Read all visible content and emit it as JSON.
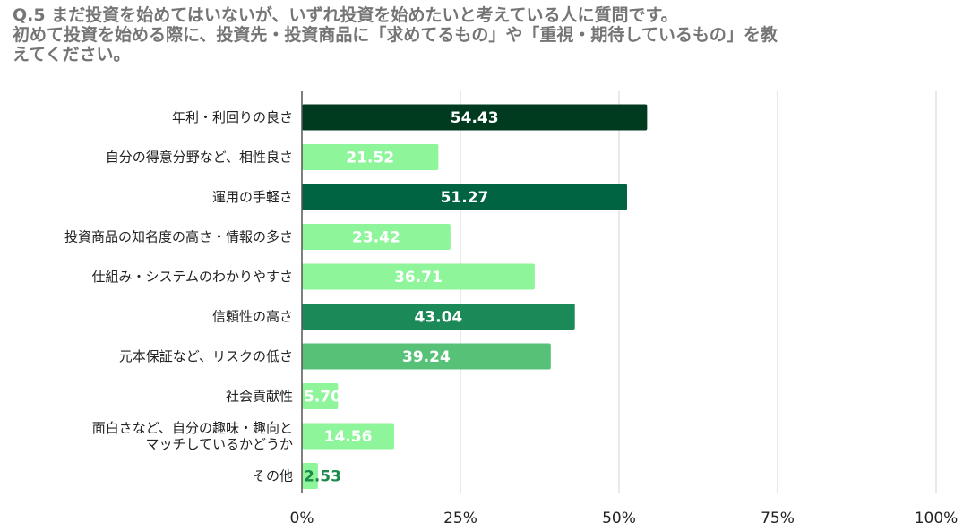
{
  "chart_data": {
    "type": "bar",
    "orientation": "horizontal",
    "title": [
      "Q.5 まだ投資を始めてはいないが、いずれ投資を始めたいと考えている人に質問です。",
      "初めて投資を始める際に、投資先・投資商品に「求めてるもの」や「重視・期待しているもの」を教",
      "えてください。"
    ],
    "categories": [
      [
        "年利・利回りの良さ"
      ],
      [
        "自分の得意分野など、相性良さ"
      ],
      [
        "運用の手軽さ"
      ],
      [
        "投資商品の知名度の高さ・情報の多さ"
      ],
      [
        "仕組み・システムのわかりやすさ"
      ],
      [
        "信頼性の高さ"
      ],
      [
        "元本保証など、リスクの低さ"
      ],
      [
        "社会貢献性"
      ],
      [
        "面白さなど、自分の趣味・趣向と",
        "マッチしているかどうか"
      ],
      [
        "その他"
      ]
    ],
    "values": [
      54.43,
      21.52,
      51.27,
      23.42,
      36.71,
      43.04,
      39.24,
      5.7,
      14.56,
      2.53
    ],
    "value_labels": [
      "54.43",
      "21.52",
      "51.27",
      "23.42",
      "36.71",
      "43.04",
      "39.24",
      "5.70",
      "14.56",
      "2.53"
    ],
    "colors": [
      "#003a1f",
      "#8ef59a",
      "#006341",
      "#8ef59a",
      "#8ef59a",
      "#1b8a58",
      "#56c177",
      "#8ef59a",
      "#8ef59a",
      "#8ef59a"
    ],
    "xlim": [
      0,
      100
    ],
    "xticks": [
      0,
      25,
      50,
      75,
      100
    ],
    "xtick_labels": [
      "0%",
      "25%",
      "50%",
      "75%",
      "100%"
    ],
    "grid": true,
    "xlabel": "",
    "ylabel": ""
  }
}
